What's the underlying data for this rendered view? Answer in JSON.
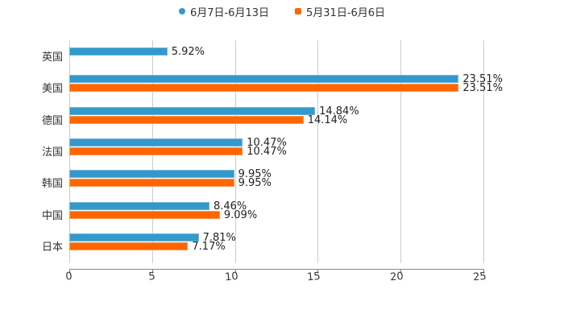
{
  "chart_data": {
    "type": "bar",
    "orientation": "horizontal",
    "title": "",
    "categories": [
      "英国",
      "美国",
      "德国",
      "法国",
      "韩国",
      "中国",
      "日本"
    ],
    "series": [
      {
        "name": "6月7日-6月13日",
        "color": "#3399cc",
        "values": [
          5.92,
          23.51,
          14.84,
          10.47,
          9.95,
          8.46,
          7.81
        ],
        "labels": [
          "5.92%",
          "23.51%",
          "14.84%",
          "10.47%",
          "9.95%",
          "8.46%",
          "7.81%"
        ]
      },
      {
        "name": "5月31日-6月6日",
        "color": "#ff6600",
        "values": [
          null,
          23.51,
          14.14,
          10.47,
          9.95,
          9.09,
          7.17
        ],
        "labels": [
          "",
          "23.51%",
          "14.14%",
          "10.47%",
          "9.95%",
          "9.09%",
          "7.17%"
        ]
      }
    ],
    "xlabel": "",
    "ylabel": "",
    "xlim": [
      0,
      25
    ],
    "x_ticks": [
      "0",
      "5",
      "10",
      "15",
      "20",
      "25"
    ],
    "grid": true,
    "legend_position": "top"
  },
  "legend": {
    "items": [
      {
        "label": "6月7日-6月13日",
        "color": "#3399cc",
        "shape": "circle"
      },
      {
        "label": "5月31日-6月6日",
        "color": "#ff6600",
        "shape": "square"
      }
    ]
  }
}
